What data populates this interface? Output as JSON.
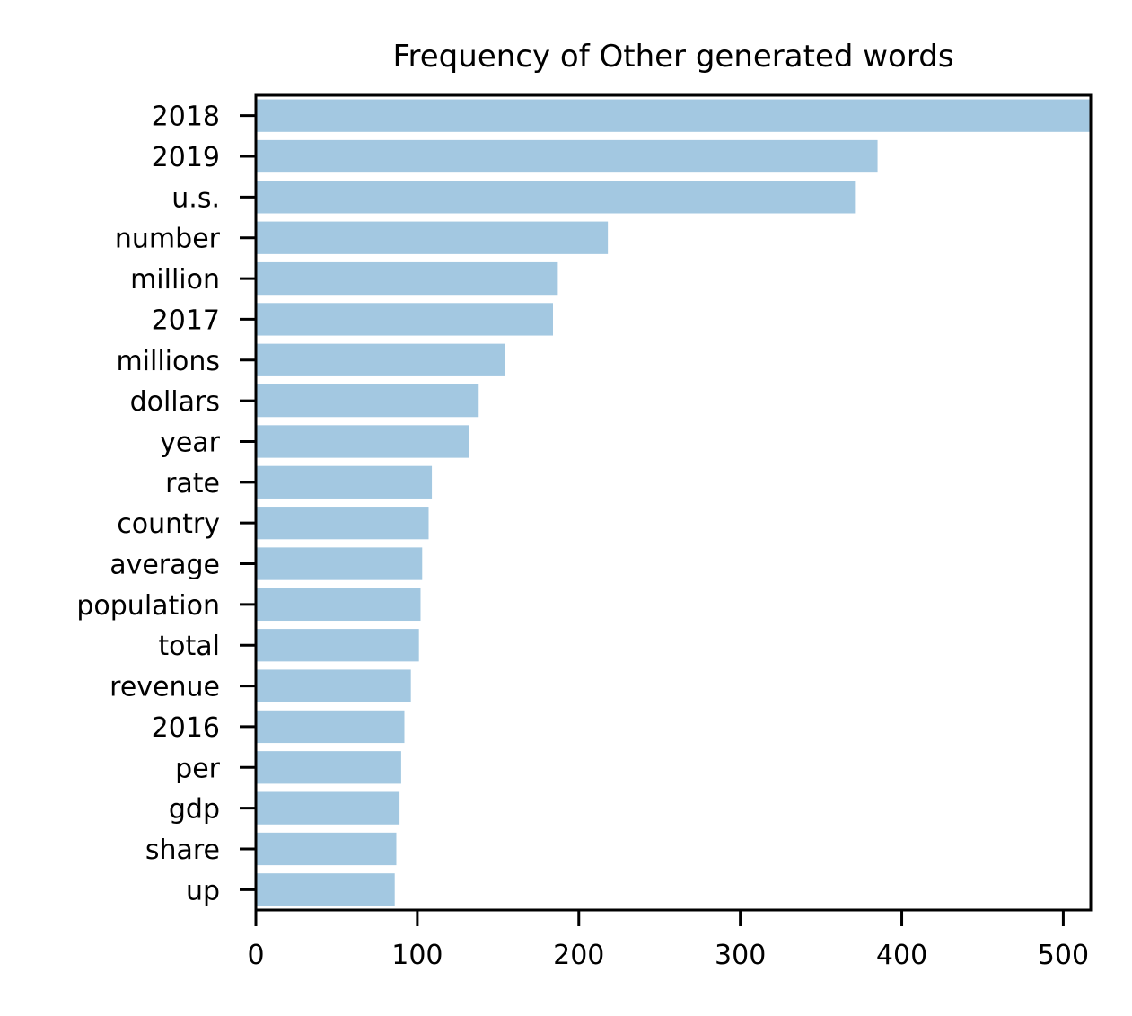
{
  "chart_data": {
    "type": "bar",
    "orientation": "horizontal",
    "title": "Frequency of Other generated words",
    "xlabel": "",
    "ylabel": "",
    "categories": [
      "2018",
      "2019",
      "u.s.",
      "number",
      "million",
      "2017",
      "millions",
      "dollars",
      "year",
      "rate",
      "country",
      "average",
      "population",
      "total",
      "revenue",
      "2016",
      "per",
      "gdp",
      "share",
      "up"
    ],
    "values": [
      540,
      385,
      371,
      218,
      187,
      184,
      154,
      138,
      132,
      109,
      107,
      103,
      102,
      101,
      96,
      92,
      90,
      89,
      87,
      86
    ],
    "xlim": [
      0,
      517
    ],
    "xticks": [
      0,
      100,
      200,
      300,
      400,
      500
    ],
    "xtick_labels": [
      "0",
      "100",
      "200",
      "300",
      "400",
      "500"
    ],
    "grid": false,
    "bar_color": "#a3c8e1"
  }
}
